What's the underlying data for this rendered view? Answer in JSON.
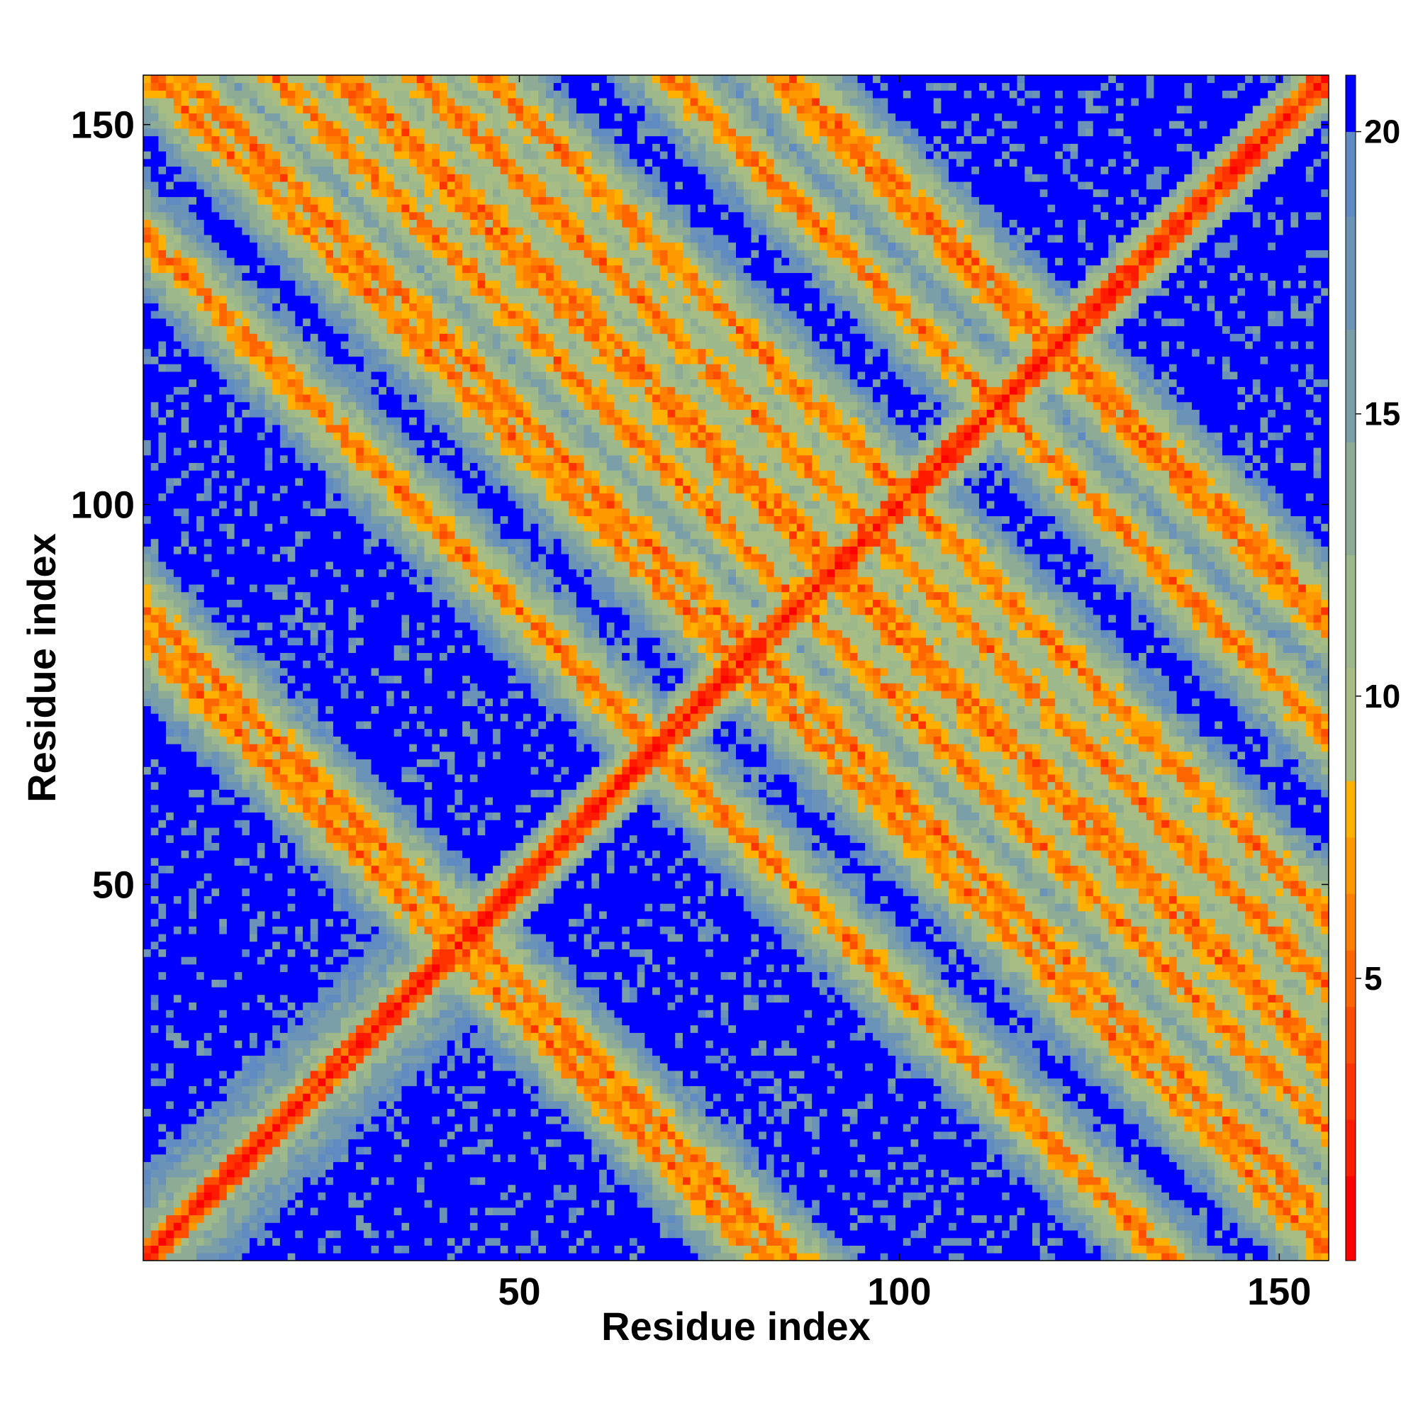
{
  "chart_data": {
    "type": "heatmap",
    "title": "",
    "xlabel": "Residue index",
    "ylabel": "Residue index",
    "n_residues": 156,
    "xlim": [
      1,
      156
    ],
    "ylim": [
      1,
      156
    ],
    "x_ticks": [
      50,
      100,
      150
    ],
    "y_ticks": [
      50,
      100,
      150
    ],
    "colorbar": {
      "range": [
        0,
        21
      ],
      "ticks": [
        5,
        10,
        15,
        20
      ],
      "levels": [
        {
          "max": 1.5,
          "color": "#ff0000"
        },
        {
          "max": 2.5,
          "color": "#ff1a00"
        },
        {
          "max": 3.5,
          "color": "#ff3300"
        },
        {
          "max": 4.5,
          "color": "#ff4d00"
        },
        {
          "max": 5.5,
          "color": "#ff6600"
        },
        {
          "max": 6.5,
          "color": "#ff8000"
        },
        {
          "max": 7.5,
          "color": "#ff9900"
        },
        {
          "max": 8.5,
          "color": "#ffb000"
        },
        {
          "max": 10.5,
          "color": "#a8bd84"
        },
        {
          "max": 12.5,
          "color": "#9db88a"
        },
        {
          "max": 14.5,
          "color": "#8eab96"
        },
        {
          "max": 16.5,
          "color": "#7b9fa8"
        },
        {
          "max": 18.5,
          "color": "#6b93b8"
        },
        {
          "max": 20.0,
          "color": "#5f8ac2"
        },
        {
          "max": 21.0,
          "color": "#0000ff"
        }
      ]
    },
    "cell_value_formula": "distance in Angstrom between residues i and j; cells >= 20 plotted as blue",
    "contact_features": [
      {
        "kind": "diagonal",
        "description": "main diagonal i=j",
        "value": 1
      },
      {
        "kind": "antiparallel",
        "centre": [
          68,
          68
        ],
        "span": 10
      },
      {
        "kind": "antiparallel",
        "centre": [
          86,
          88
        ],
        "span": 6
      },
      {
        "kind": "antiparallel",
        "centre": [
          108,
          118
        ],
        "span": 10
      },
      {
        "kind": "antiparallel",
        "centre": [
          66,
          116
        ],
        "span": 8
      },
      {
        "kind": "antiparallel",
        "centre": [
          78,
          106
        ],
        "span": 8
      },
      {
        "kind": "antiparallel",
        "centre": [
          113,
          80
        ],
        "span": 8
      },
      {
        "kind": "antiparallel",
        "centre": [
          133,
          107
        ],
        "span": 8
      },
      {
        "kind": "antiparallel",
        "centre": [
          142,
          60
        ],
        "span": 8
      },
      {
        "kind": "antiparallel",
        "centre": [
          7,
          76
        ],
        "span": 6
      },
      {
        "kind": "antiparallel",
        "centre": [
          8,
          150
        ],
        "span": 8
      },
      {
        "kind": "antiparallel",
        "centre": [
          152,
          10
        ],
        "span": 6
      },
      {
        "kind": "antiparallel",
        "centre": [
          80,
          7
        ],
        "span": 6
      },
      {
        "kind": "antiparallel",
        "centre": [
          120,
          122
        ],
        "span": 6
      }
    ]
  }
}
